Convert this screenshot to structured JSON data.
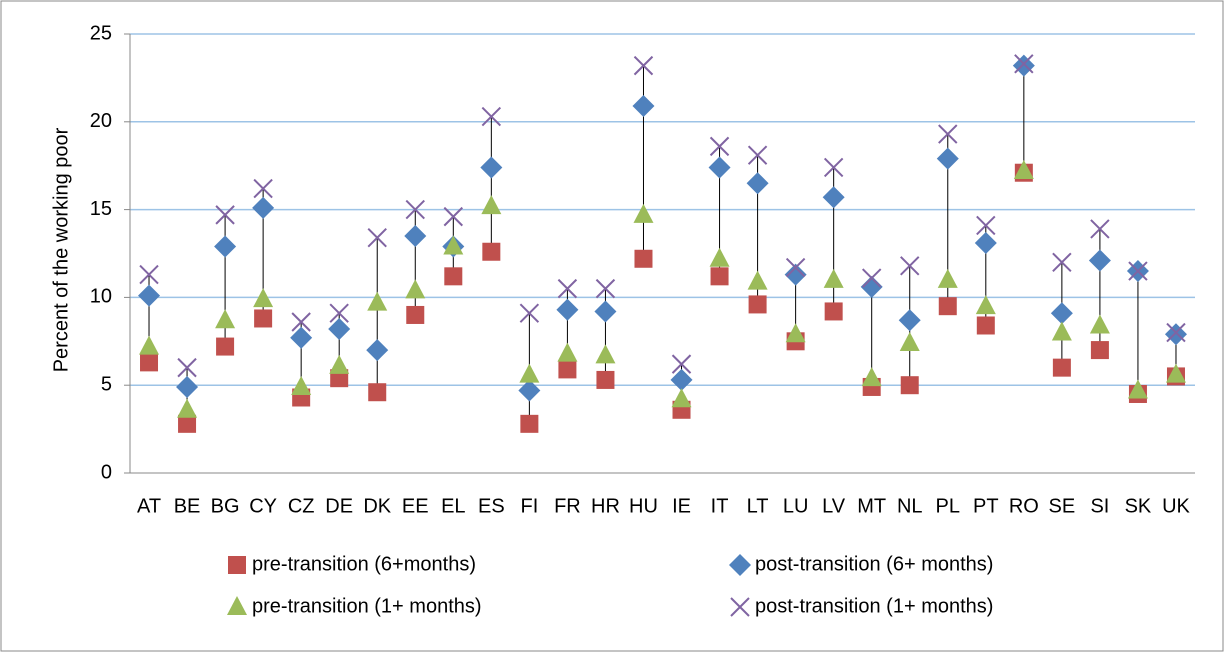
{
  "chart_data": {
    "type": "high-low-marker",
    "y_label": "Percent of the working poor",
    "categories": [
      "AT",
      "BE",
      "BG",
      "CY",
      "CZ",
      "DE",
      "DK",
      "EE",
      "EL",
      "ES",
      "FI",
      "FR",
      "HR",
      "HU",
      "IE",
      "IT",
      "LT",
      "LU",
      "LV",
      "MT",
      "NL",
      "PL",
      "PT",
      "RO",
      "SE",
      "SI",
      "SK",
      "UK"
    ],
    "series": [
      {
        "name": "pre-transition (6+months)",
        "color": "#c0504d",
        "marker": "square",
        "values": [
          6.3,
          2.8,
          7.2,
          8.8,
          4.3,
          5.4,
          4.6,
          9.0,
          11.2,
          12.6,
          2.8,
          5.9,
          5.3,
          12.2,
          3.6,
          11.2,
          9.6,
          7.5,
          9.2,
          4.9,
          5.0,
          9.5,
          8.4,
          17.1,
          6.0,
          7.0,
          4.5,
          5.5
        ]
      },
      {
        "name": "post-transition (6+ months)",
        "color": "#4f81bd",
        "marker": "diamond",
        "values": [
          10.1,
          4.9,
          12.9,
          15.1,
          7.7,
          8.2,
          7.0,
          13.5,
          12.9,
          17.4,
          4.7,
          9.3,
          9.2,
          20.9,
          5.3,
          17.4,
          16.5,
          11.3,
          15.7,
          10.6,
          8.7,
          17.9,
          13.1,
          23.2,
          9.1,
          12.1,
          11.5,
          7.9
        ]
      },
      {
        "name": "pre-transition (1+ months)",
        "color": "#9bbb59",
        "marker": "triangle",
        "values": [
          7.2,
          3.6,
          8.7,
          9.9,
          4.9,
          6.1,
          9.7,
          10.4,
          12.9,
          15.2,
          5.6,
          6.8,
          6.7,
          14.7,
          4.2,
          12.2,
          10.9,
          7.9,
          11.0,
          5.4,
          7.4,
          11.0,
          9.5,
          17.2,
          8.0,
          8.4,
          4.7,
          5.6
        ]
      },
      {
        "name": "post-transition (1+ months)",
        "color": "#8064a2",
        "marker": "x",
        "values": [
          11.3,
          6.0,
          14.7,
          16.2,
          8.6,
          9.1,
          13.4,
          15.0,
          14.6,
          20.3,
          9.1,
          10.5,
          10.5,
          23.2,
          6.2,
          18.6,
          18.1,
          11.7,
          17.4,
          11.1,
          11.8,
          19.3,
          14.1,
          23.3,
          12.0,
          13.9,
          11.5,
          8.0
        ]
      }
    ],
    "ylim": [
      0,
      25
    ],
    "yticks": [
      0,
      5,
      10,
      15,
      20,
      25
    ],
    "grid": true,
    "legend": "bottom"
  }
}
